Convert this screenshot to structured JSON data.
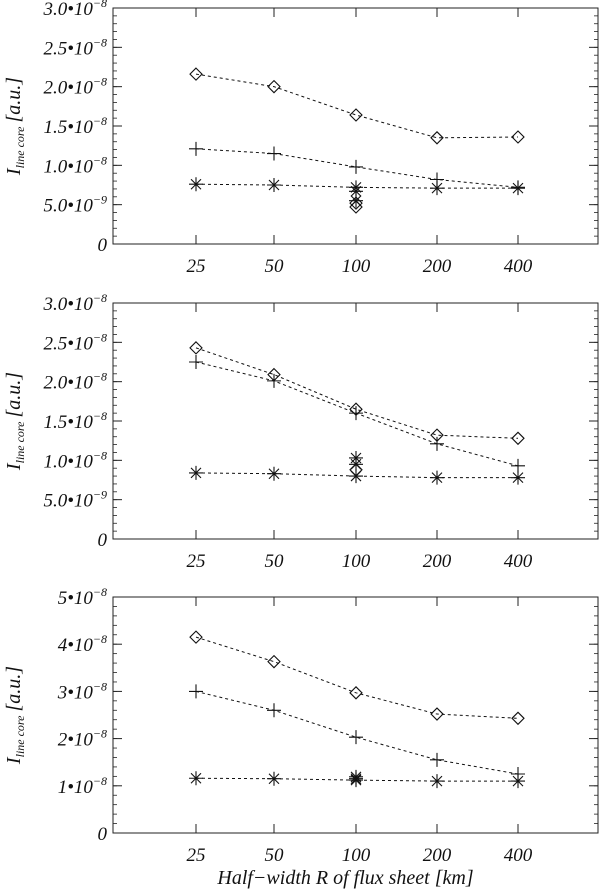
{
  "chart_data": [
    {
      "type": "scatter",
      "title": "",
      "ylabel_main": "I",
      "ylabel_sub": "line core",
      "ylabel_units": "[a.u.]",
      "xlabel": "",
      "x_ticks": [
        "25",
        "50",
        "100",
        "200",
        "400"
      ],
      "y_ticks": [
        {
          "value": 3e-08,
          "mantissa": "3.0•10",
          "exp": "−8"
        },
        {
          "value": 2.5e-08,
          "mantissa": "2.5•10",
          "exp": "−8"
        },
        {
          "value": 2e-08,
          "mantissa": "2.0•10",
          "exp": "−8"
        },
        {
          "value": 1.5e-08,
          "mantissa": "1.5•10",
          "exp": "−8"
        },
        {
          "value": 1e-08,
          "mantissa": "1.0•10",
          "exp": "−8"
        },
        {
          "value": 5e-09,
          "mantissa": "5.0•10",
          "exp": "−9"
        },
        {
          "value": 0,
          "mantissa": "0",
          "exp": ""
        }
      ],
      "ylim": [
        0,
        3e-08
      ],
      "series": [
        {
          "marker": "diamond",
          "x": [
            25,
            50,
            100,
            200,
            400
          ],
          "y": [
            2.16e-08,
            2e-08,
            1.64e-08,
            1.35e-08,
            1.36e-08
          ]
        },
        {
          "marker": "plus",
          "x": [
            25,
            50,
            100,
            200,
            400
          ],
          "y": [
            1.21e-08,
            1.15e-08,
            9.8e-09,
            8.2e-09,
            7.2e-09
          ]
        },
        {
          "marker": "asterisk",
          "x": [
            25,
            50,
            100,
            200,
            400
          ],
          "y": [
            7.6e-09,
            7.5e-09,
            7.2e-09,
            7.1e-09,
            7.1e-09
          ]
        }
      ],
      "extra_points": [
        {
          "marker": "asterisk",
          "x": 100,
          "y": 6.7e-09
        },
        {
          "marker": "asterisk",
          "x": 100,
          "y": 5.5e-09
        },
        {
          "marker": "diamond",
          "x": 100,
          "y": 5.2e-09
        },
        {
          "marker": "diamond",
          "x": 100,
          "y": 4.7e-09
        }
      ]
    },
    {
      "type": "scatter",
      "title": "",
      "ylabel_main": "I",
      "ylabel_sub": "line core",
      "ylabel_units": "[a.u.]",
      "xlabel": "",
      "x_ticks": [
        "25",
        "50",
        "100",
        "200",
        "400"
      ],
      "y_ticks": [
        {
          "value": 3e-08,
          "mantissa": "3.0•10",
          "exp": "−8"
        },
        {
          "value": 2.5e-08,
          "mantissa": "2.5•10",
          "exp": "−8"
        },
        {
          "value": 2e-08,
          "mantissa": "2.0•10",
          "exp": "−8"
        },
        {
          "value": 1.5e-08,
          "mantissa": "1.5•10",
          "exp": "−8"
        },
        {
          "value": 1e-08,
          "mantissa": "1.0•10",
          "exp": "−8"
        },
        {
          "value": 5e-09,
          "mantissa": "5.0•10",
          "exp": "−9"
        },
        {
          "value": 0,
          "mantissa": "0",
          "exp": ""
        }
      ],
      "ylim": [
        0,
        3e-08
      ],
      "series": [
        {
          "marker": "diamond",
          "x": [
            25,
            50,
            100,
            200,
            400
          ],
          "y": [
            2.43e-08,
            2.09e-08,
            1.65e-08,
            1.32e-08,
            1.28e-08
          ]
        },
        {
          "marker": "plus",
          "x": [
            25,
            50,
            100,
            200,
            400
          ],
          "y": [
            2.25e-08,
            2.01e-08,
            1.6e-08,
            1.21e-08,
            9.3e-09
          ]
        },
        {
          "marker": "asterisk",
          "x": [
            25,
            50,
            100,
            200,
            400
          ],
          "y": [
            8.4e-09,
            8.3e-09,
            8e-09,
            7.8e-09,
            7.8e-09
          ]
        }
      ],
      "extra_points": [
        {
          "marker": "asterisk",
          "x": 100,
          "y": 1.03e-08
        },
        {
          "marker": "asterisk",
          "x": 100,
          "y": 9.5e-09
        },
        {
          "marker": "diamond",
          "x": 100,
          "y": 8.8e-09
        }
      ]
    },
    {
      "type": "scatter",
      "title": "",
      "ylabel_main": "I",
      "ylabel_sub": "line core",
      "ylabel_units": "[a.u.]",
      "xlabel": "Half−width R of flux sheet [km]",
      "x_ticks": [
        "25",
        "50",
        "100",
        "200",
        "400"
      ],
      "y_ticks": [
        {
          "value": 5e-08,
          "mantissa": "5•10",
          "exp": "−8"
        },
        {
          "value": 4e-08,
          "mantissa": "4•10",
          "exp": "−8"
        },
        {
          "value": 3e-08,
          "mantissa": "3•10",
          "exp": "−8"
        },
        {
          "value": 2e-08,
          "mantissa": "2•10",
          "exp": "−8"
        },
        {
          "value": 1e-08,
          "mantissa": "1•10",
          "exp": "−8"
        },
        {
          "value": 0,
          "mantissa": "0",
          "exp": ""
        }
      ],
      "ylim": [
        0,
        5e-08
      ],
      "series": [
        {
          "marker": "diamond",
          "x": [
            25,
            50,
            100,
            200,
            400
          ],
          "y": [
            4.15e-08,
            3.63e-08,
            2.97e-08,
            2.52e-08,
            2.43e-08
          ]
        },
        {
          "marker": "plus",
          "x": [
            25,
            50,
            100,
            200,
            400
          ],
          "y": [
            3e-08,
            2.6e-08,
            2.03e-08,
            1.55e-08,
            1.25e-08
          ]
        },
        {
          "marker": "asterisk",
          "x": [
            25,
            50,
            100,
            200,
            400
          ],
          "y": [
            1.16e-08,
            1.15e-08,
            1.12e-08,
            1.1e-08,
            1.1e-08
          ]
        }
      ],
      "extra_points": [
        {
          "marker": "asterisk",
          "x": 100,
          "y": 1.19e-08
        },
        {
          "marker": "asterisk",
          "x": 100,
          "y": 1.15e-08
        }
      ]
    }
  ]
}
